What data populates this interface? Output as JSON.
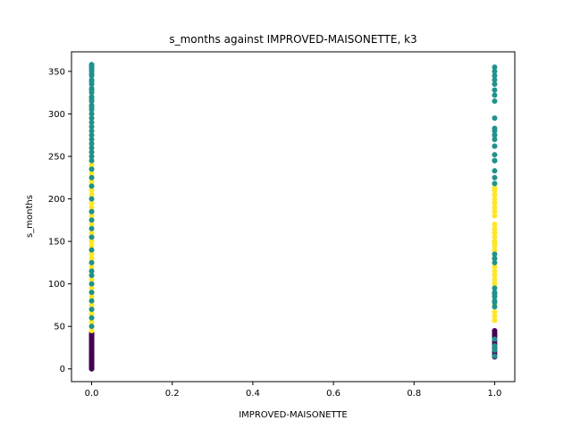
{
  "chart_data": {
    "type": "scatter",
    "title": "s_months against IMPROVED-MAISONETTE, k3",
    "xlabel": "IMPROVED-MAISONETTE",
    "ylabel": "s_months",
    "xlim": [
      -0.05,
      1.05
    ],
    "ylim": [
      -15,
      373
    ],
    "xticks": [
      0.0,
      0.2,
      0.4,
      0.6,
      0.8,
      1.0
    ],
    "xtick_labels": [
      "0.0",
      "0.2",
      "0.4",
      "0.6",
      "0.8",
      "1.0"
    ],
    "yticks": [
      0,
      50,
      100,
      150,
      200,
      250,
      300,
      350
    ],
    "ytick_labels": [
      "0",
      "50",
      "100",
      "150",
      "200",
      "250",
      "300",
      "350"
    ],
    "grid": false,
    "legend": "none",
    "colors": {
      "cluster_purple": "#440154",
      "cluster_teal": "#21918c",
      "cluster_yellow": "#fde725"
    },
    "series": [
      {
        "color_key": "cluster_purple",
        "x": [
          0,
          0,
          0,
          0,
          0,
          0,
          0,
          0,
          0,
          0,
          0,
          0,
          0,
          0,
          0,
          0,
          0,
          0,
          0,
          0,
          0,
          0,
          0,
          0,
          0,
          0,
          0,
          0,
          0,
          0,
          0,
          0,
          0,
          0,
          0,
          0,
          0,
          0,
          0,
          0,
          0,
          0,
          0,
          1,
          1,
          1,
          1,
          1,
          1,
          1,
          1,
          1,
          1,
          1,
          1,
          1
        ],
        "y": [
          0,
          1,
          2,
          3,
          4,
          5,
          6,
          7,
          8,
          9,
          10,
          11,
          12,
          13,
          14,
          15,
          16,
          17,
          18,
          19,
          20,
          21,
          22,
          23,
          24,
          25,
          26,
          27,
          28,
          29,
          30,
          31,
          32,
          33,
          34,
          35,
          36,
          37,
          38,
          39,
          40,
          41,
          42,
          14,
          17,
          20,
          23,
          26,
          29,
          32,
          35,
          37,
          39,
          41,
          43,
          45
        ]
      },
      {
        "color_key": "cluster_yellow",
        "x": [
          0,
          0,
          0,
          0,
          0,
          0,
          0,
          0,
          0,
          0,
          0,
          0,
          0,
          0,
          0,
          0,
          0,
          0,
          0,
          0,
          0,
          0,
          0,
          0,
          0,
          0,
          0,
          0,
          0,
          0,
          0,
          0,
          0,
          0,
          0,
          0,
          0,
          0,
          0,
          0,
          0,
          0,
          0,
          0,
          0,
          0,
          0,
          0,
          0,
          0,
          0,
          0,
          0,
          0,
          0,
          0,
          1,
          1,
          1,
          1,
          1,
          1,
          1,
          1,
          1,
          1,
          1,
          1,
          1,
          1,
          1,
          1,
          1,
          1,
          1,
          1,
          1,
          1,
          1,
          1,
          1,
          1,
          1,
          1,
          1,
          1
        ],
        "y": [
          45,
          50,
          55,
          60,
          65,
          70,
          75,
          80,
          85,
          90,
          95,
          100,
          105,
          110,
          115,
          120,
          125,
          130,
          135,
          140,
          145,
          150,
          155,
          160,
          165,
          170,
          175,
          180,
          185,
          190,
          195,
          200,
          205,
          210,
          215,
          220,
          225,
          230,
          235,
          240,
          245,
          250,
          255,
          260,
          265,
          270,
          275,
          280,
          285,
          290,
          295,
          300,
          305,
          310,
          315,
          320,
          57,
          62,
          67,
          75,
          85,
          100,
          105,
          110,
          115,
          120,
          125,
          130,
          135,
          140,
          145,
          150,
          155,
          160,
          165,
          180,
          185,
          190,
          195,
          200,
          205,
          210,
          213,
          165,
          170,
          148
        ]
      },
      {
        "color_key": "cluster_teal",
        "x": [
          0,
          0,
          0,
          0,
          0,
          0,
          0,
          0,
          0,
          0,
          0,
          0,
          0,
          0,
          0,
          0,
          0,
          0,
          0,
          0,
          0,
          0,
          0,
          0,
          0,
          0,
          0,
          0,
          0,
          0,
          0,
          0,
          0,
          0,
          0,
          0,
          0,
          0,
          0,
          0,
          0,
          0,
          0,
          0,
          0,
          0,
          0,
          0,
          0,
          0,
          1,
          1,
          1,
          1,
          1,
          1,
          1,
          1,
          1,
          1,
          1,
          1,
          1,
          1,
          1,
          1,
          1,
          1,
          1,
          1,
          1,
          1,
          1,
          1,
          1,
          1,
          1,
          1,
          1,
          1,
          1,
          1,
          1,
          1,
          1,
          1
        ],
        "y": [
          50,
          60,
          70,
          80,
          90,
          100,
          110,
          115,
          125,
          140,
          155,
          165,
          175,
          185,
          200,
          215,
          225,
          235,
          245,
          250,
          255,
          260,
          265,
          270,
          275,
          280,
          285,
          290,
          295,
          300,
          305,
          310,
          315,
          320,
          325,
          330,
          335,
          340,
          345,
          350,
          352,
          354,
          356,
          357,
          358,
          347,
          338,
          328,
          318,
          308,
          15,
          22,
          27,
          35,
          73,
          78,
          85,
          90,
          95,
          125,
          130,
          135,
          218,
          225,
          233,
          245,
          252,
          262,
          270,
          275,
          280,
          283,
          295,
          315,
          322,
          328,
          335,
          340,
          345,
          350,
          355,
          88,
          80,
          245,
          275,
          262
        ]
      }
    ]
  }
}
